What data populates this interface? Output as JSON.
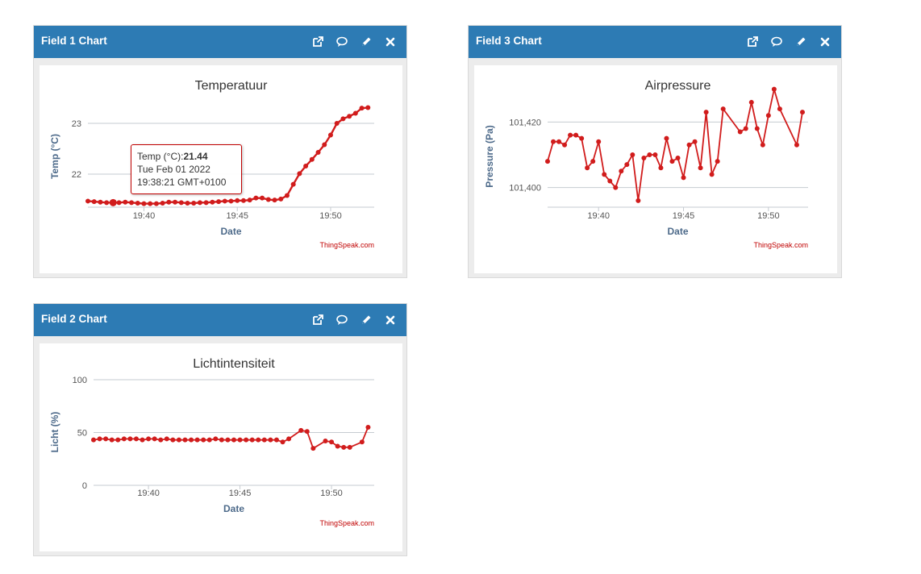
{
  "colors": {
    "header": "#2d7bb4",
    "series": "#d11c1c",
    "grid": "#c6cbd1",
    "axis_title": "#4d6a8a",
    "credit": "#c00000"
  },
  "icons": [
    "external-link-icon",
    "comment-icon",
    "pencil-icon",
    "close-icon"
  ],
  "widgets": [
    {
      "title": "Field 1 Chart",
      "chart_data": {
        "type": "line",
        "title": "Temperatuur",
        "xlabel": "Date",
        "ylabel": "Temp (°C)",
        "xlim": [
          "19:37:00",
          "19:52:20"
        ],
        "ylim": [
          21.35,
          23.35
        ],
        "xticks": [
          "19:40",
          "19:45",
          "19:50"
        ],
        "yticks": [
          22,
          23
        ],
        "grid": true,
        "credit": "ThingSpeak.com",
        "x": [
          "19:37:00",
          "19:37:20",
          "19:37:40",
          "19:38:00",
          "19:38:21",
          "19:38:40",
          "19:39:00",
          "19:39:20",
          "19:39:40",
          "19:40:00",
          "19:40:20",
          "19:40:40",
          "19:41:00",
          "19:41:20",
          "19:41:40",
          "19:42:00",
          "19:42:20",
          "19:42:40",
          "19:43:00",
          "19:43:20",
          "19:43:40",
          "19:44:00",
          "19:44:20",
          "19:44:40",
          "19:45:00",
          "19:45:20",
          "19:45:40",
          "19:46:00",
          "19:46:20",
          "19:46:40",
          "19:47:00",
          "19:47:20",
          "19:47:40",
          "19:48:00",
          "19:48:20",
          "19:48:40",
          "19:49:00",
          "19:49:20",
          "19:49:40",
          "19:50:00",
          "19:50:20",
          "19:50:40",
          "19:51:00",
          "19:51:20",
          "19:51:40",
          "19:52:00"
        ],
        "series": [
          {
            "values": [
              21.47,
              21.46,
              21.45,
              21.44,
              21.44,
              21.44,
              21.45,
              21.44,
              21.43,
              21.42,
              21.42,
              21.42,
              21.43,
              21.45,
              21.45,
              21.44,
              21.43,
              21.43,
              21.44,
              21.44,
              21.45,
              21.46,
              21.47,
              21.47,
              21.48,
              21.48,
              21.49,
              21.53,
              21.53,
              21.5,
              21.49,
              21.51,
              21.58,
              21.8,
              22.01,
              22.16,
              22.29,
              22.43,
              22.58,
              22.77,
              23.0,
              23.09,
              23.14,
              23.2,
              23.3,
              23.31
            ]
          }
        ],
        "tooltip": {
          "label": "Temp (°C):",
          "value": "21.44",
          "date": "Tue Feb 01 2022",
          "time": "19:38:21 GMT+0100",
          "x": "19:38:21"
        }
      }
    },
    {
      "title": "Field 3 Chart",
      "chart_data": {
        "type": "line",
        "title": "Airpressure",
        "xlabel": "Date",
        "ylabel": "Pressure (Pa)",
        "xlim": [
          "19:37:00",
          "19:52:20"
        ],
        "ylim": [
          101394,
          101425
        ],
        "xticks": [
          "19:40",
          "19:45",
          "19:50"
        ],
        "yticks": [
          101400,
          101420
        ],
        "ytick_labels": [
          "101,400",
          "101,420"
        ],
        "grid": true,
        "credit": "ThingSpeak.com",
        "x": [
          "19:37:00",
          "19:37:20",
          "19:37:40",
          "19:38:00",
          "19:38:20",
          "19:38:40",
          "19:39:00",
          "19:39:20",
          "19:39:40",
          "19:40:00",
          "19:40:20",
          "19:40:40",
          "19:41:00",
          "19:41:20",
          "19:41:40",
          "19:42:00",
          "19:42:20",
          "19:42:40",
          "19:43:00",
          "19:43:20",
          "19:43:40",
          "19:44:00",
          "19:44:20",
          "19:44:40",
          "19:45:00",
          "19:45:20",
          "19:45:40",
          "19:46:00",
          "19:46:20",
          "19:46:40",
          "19:47:00",
          "19:47:20",
          "19:48:20",
          "19:48:40",
          "19:49:00",
          "19:49:20",
          "19:49:40",
          "19:50:00",
          "19:50:20",
          "19:50:40",
          "19:51:40",
          "19:52:00"
        ],
        "series": [
          {
            "values": [
              101408,
              101414,
              101414,
              101413,
              101416,
              101416,
              101415,
              101406,
              101408,
              101414,
              101404,
              101402,
              101400,
              101405,
              101407,
              101410,
              101396,
              101409,
              101410,
              101410,
              101406,
              101415,
              101408,
              101409,
              101403,
              101413,
              101414,
              101406,
              101423,
              101404,
              101408,
              101424,
              101417,
              101418,
              101426,
              101418,
              101413,
              101422,
              101430,
              101424,
              101413,
              101423
            ]
          }
        ]
      }
    },
    {
      "title": "Field 2 Chart",
      "chart_data": {
        "type": "line",
        "title": "Lichtintensiteit",
        "xlabel": "Date",
        "ylabel": "Licht (%)",
        "xlim": [
          "19:37:00",
          "19:52:20"
        ],
        "ylim": [
          0,
          100
        ],
        "xticks": [
          "19:40",
          "19:45",
          "19:50"
        ],
        "yticks": [
          0,
          50,
          100
        ],
        "grid": true,
        "credit": "ThingSpeak.com",
        "x": [
          "19:37:00",
          "19:37:20",
          "19:37:40",
          "19:38:00",
          "19:38:20",
          "19:38:40",
          "19:39:00",
          "19:39:20",
          "19:39:40",
          "19:40:00",
          "19:40:20",
          "19:40:40",
          "19:41:00",
          "19:41:20",
          "19:41:40",
          "19:42:00",
          "19:42:20",
          "19:42:40",
          "19:43:00",
          "19:43:20",
          "19:43:40",
          "19:44:00",
          "19:44:20",
          "19:44:40",
          "19:45:00",
          "19:45:20",
          "19:45:40",
          "19:46:00",
          "19:46:20",
          "19:46:40",
          "19:47:00",
          "19:47:20",
          "19:47:40",
          "19:48:20",
          "19:48:40",
          "19:49:00",
          "19:49:40",
          "19:50:00",
          "19:50:20",
          "19:50:40",
          "19:51:00",
          "19:51:40",
          "19:52:00"
        ],
        "series": [
          {
            "values": [
              43,
              44,
              44,
              43,
              43,
              44,
              44,
              44,
              43,
              44,
              44,
              43,
              44,
              43,
              43,
              43,
              43,
              43,
              43,
              43,
              44,
              43,
              43,
              43,
              43,
              43,
              43,
              43,
              43,
              43,
              43,
              41,
              44,
              52,
              51,
              35,
              42,
              41,
              37,
              36,
              36,
              41,
              55
            ]
          }
        ]
      }
    }
  ]
}
